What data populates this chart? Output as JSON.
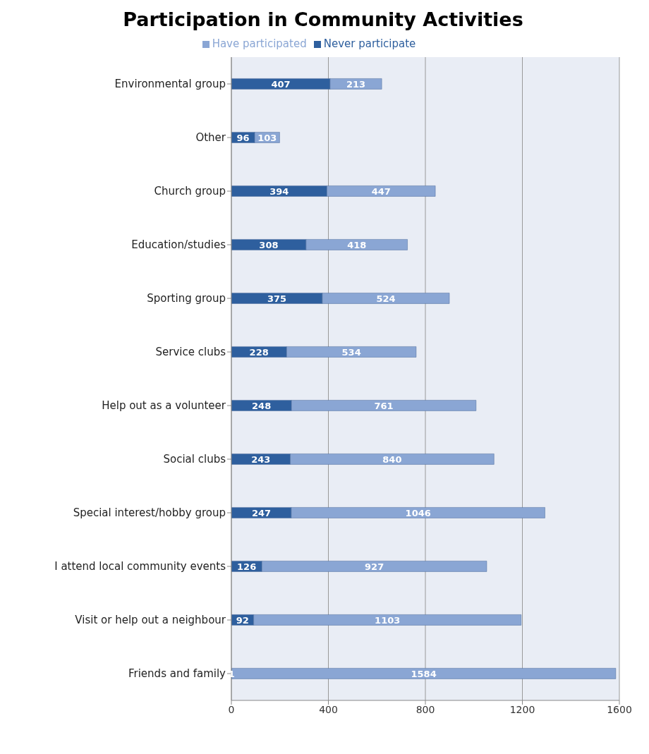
{
  "chart_data": {
    "type": "bar",
    "title": "Participation in Community Activities",
    "orientation": "horizontal",
    "stacked": true,
    "categories": [
      "Environmental group",
      "Other",
      "Church group",
      "Education/studies",
      "Sporting group",
      "Service clubs",
      "Help out as a volunteer",
      "Social clubs",
      "Special interest/hobby group",
      "I attend local community events",
      "Visit or help out a neighbour",
      "Friends and family"
    ],
    "series": [
      {
        "name": "Never participate",
        "color": "#2e5f9e",
        "values": [
          407,
          96,
          394,
          308,
          375,
          228,
          248,
          243,
          247,
          126,
          92,
          1
        ]
      },
      {
        "name": "Have participated",
        "color": "#8aa6d4",
        "values": [
          213,
          103,
          447,
          418,
          524,
          534,
          761,
          840,
          1046,
          927,
          1103,
          1584
        ]
      }
    ],
    "xlim": [
      0,
      1600
    ],
    "xticks": [
      0,
      400,
      800,
      1200,
      1600
    ],
    "grid": "x",
    "legend": "top",
    "data_labels": true
  }
}
